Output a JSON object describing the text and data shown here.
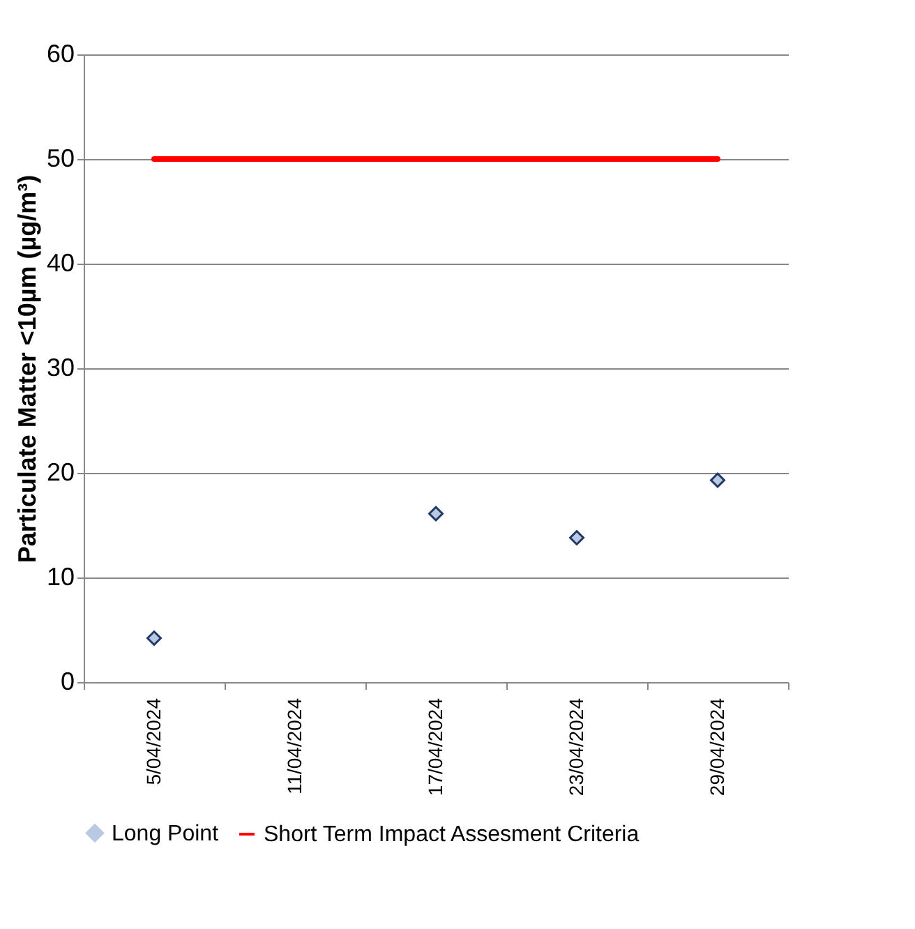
{
  "chart_data": {
    "type": "scatter",
    "ylabel": "Particulate Matter <10µm (µg/m³)",
    "categories": [
      "5/04/2024",
      "11/04/2024",
      "17/04/2024",
      "23/04/2024",
      "29/04/2024"
    ],
    "series": [
      {
        "name": "Long Point",
        "marker": "diamond",
        "color": "#b9c9e3",
        "values": [
          4.2,
          null,
          16.1,
          13.8,
          19.3
        ]
      },
      {
        "name": "Short Term Impact Assesment Criteria",
        "type": "line",
        "marker": "none",
        "color": "#ff0000",
        "values": [
          50,
          50,
          50,
          50,
          50
        ]
      }
    ],
    "ylim": [
      0,
      60
    ],
    "yticks": [
      0,
      10,
      20,
      30,
      40,
      50,
      60
    ],
    "grid": "y",
    "legend": "bottom"
  }
}
